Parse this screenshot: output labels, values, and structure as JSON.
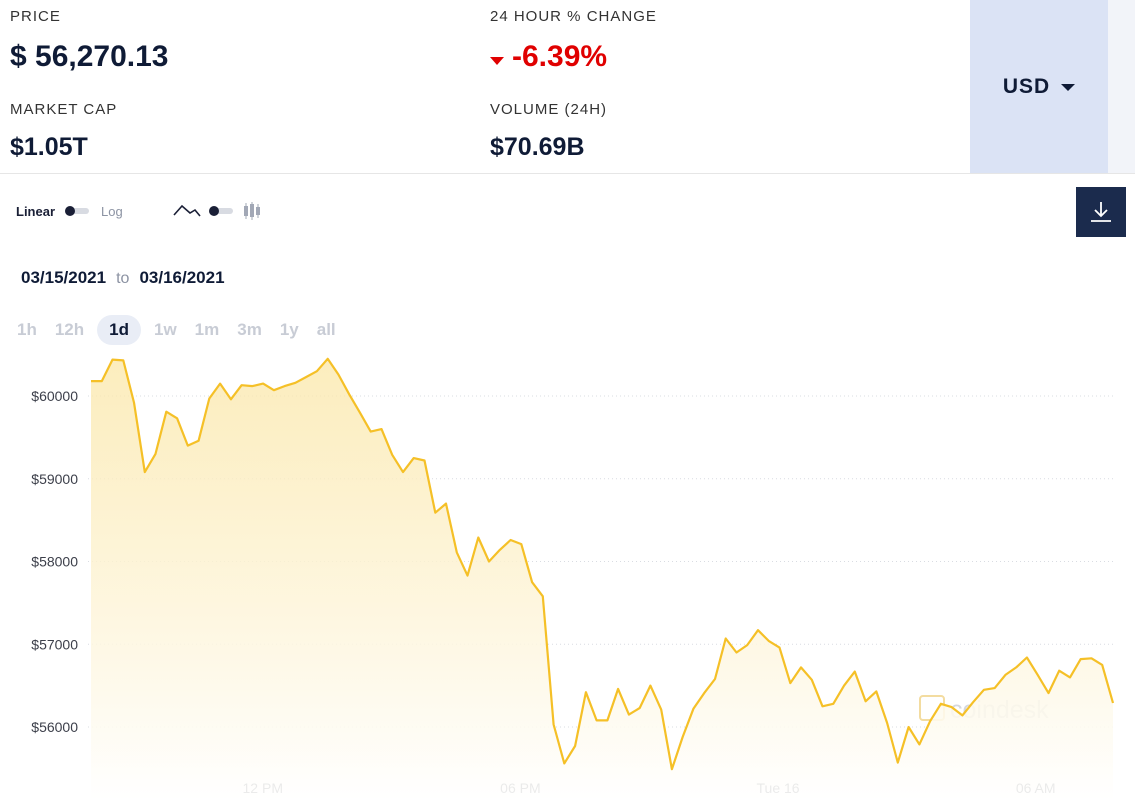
{
  "stats": {
    "price_label": "PRICE",
    "price_value": "$ 56,270.13",
    "change_label": "24 HOUR % CHANGE",
    "change_value": "-6.39%",
    "marketcap_label": "MARKET CAP",
    "marketcap_value": "$1.05T",
    "volume_label": "VOLUME (24H)",
    "volume_value": "$70.69B"
  },
  "currency": {
    "selected": "USD",
    "icon": "chevron-down-icon"
  },
  "toolbar": {
    "scale_linear": "Linear",
    "scale_log": "Log",
    "line_icon": "line-chart-icon",
    "candle_icon": "candlestick-icon",
    "download_icon": "download-icon"
  },
  "date_range": {
    "from": "03/15/2021",
    "to_word": "to",
    "to": "03/16/2021"
  },
  "ranges": [
    {
      "label": "1h",
      "active": false
    },
    {
      "label": "12h",
      "active": false
    },
    {
      "label": "1d",
      "active": true
    },
    {
      "label": "1w",
      "active": false
    },
    {
      "label": "1m",
      "active": false
    },
    {
      "label": "3m",
      "active": false
    },
    {
      "label": "1y",
      "active": false
    },
    {
      "label": "all",
      "active": false
    }
  ],
  "watermark": "coindesk",
  "colors": {
    "line": "#f5c027",
    "negative": "#e00000",
    "accent_dark": "#1b2b4d"
  },
  "chart_data": {
    "type": "area",
    "x_unit": "hours since 03/15/2021 08:00",
    "x_range": [
      0,
      23.8
    ],
    "ylim": [
      55500,
      60500
    ],
    "y_ticks": [
      56000,
      57000,
      58000,
      59000,
      60000
    ],
    "y_tick_labels": [
      "$56000",
      "$57000",
      "$58000",
      "$59000",
      "$60000"
    ],
    "x_tick_positions": [
      4,
      10,
      16,
      22
    ],
    "x_tick_labels": [
      "12 PM",
      "06 PM",
      "Tue 16",
      "06 AM"
    ],
    "grid": "horizontal dotted",
    "values": [
      60180,
      60180,
      60440,
      60430,
      59920,
      59080,
      59300,
      59810,
      59730,
      59400,
      59460,
      59970,
      60150,
      59960,
      60130,
      60120,
      60150,
      60070,
      60120,
      60160,
      60230,
      60300,
      60450,
      60260,
      60020,
      59800,
      59570,
      59600,
      59290,
      59080,
      59250,
      59220,
      58590,
      58700,
      58110,
      57830,
      58290,
      58000,
      58140,
      58260,
      58210,
      57750,
      57580,
      56030,
      55560,
      55770,
      56420,
      56080,
      56080,
      56460,
      56150,
      56230,
      56500,
      56210,
      55490,
      55880,
      56220,
      56410,
      56580,
      57070,
      56900,
      56990,
      57170,
      57040,
      56960,
      56530,
      56720,
      56570,
      56250,
      56280,
      56500,
      56670,
      56310,
      56430,
      56050,
      55570,
      56000,
      55790,
      56070,
      56280,
      56240,
      56140,
      56300,
      56450,
      56470,
      56630,
      56720,
      56840,
      56630,
      56410,
      56680,
      56600,
      56820,
      56830,
      56750,
      56290
    ]
  }
}
